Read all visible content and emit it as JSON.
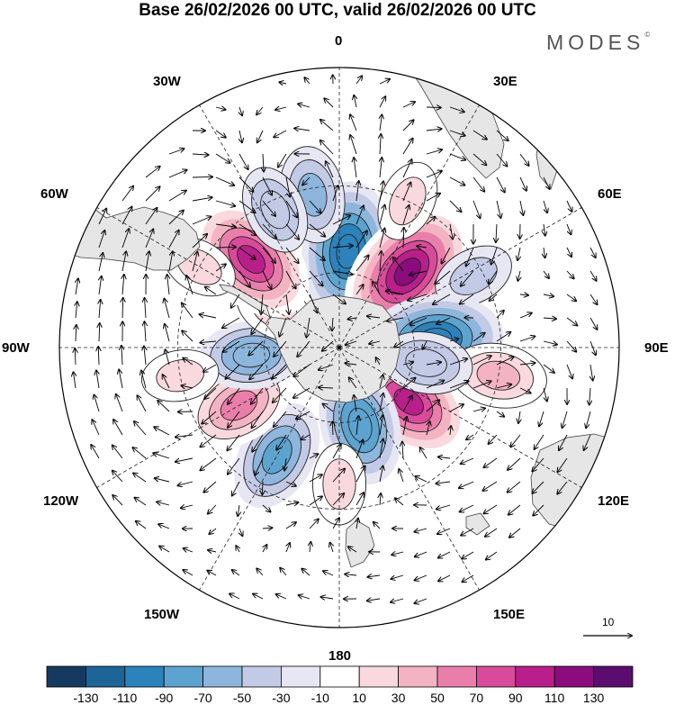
{
  "title": "Base 26/02/2026 00 UTC, valid 26/02/2026 00 UTC",
  "brand": "MODES",
  "brand_mark": "©",
  "longitude_labels": {
    "n": "0",
    "ne30": "30E",
    "ne60": "60E",
    "e90": "90E",
    "se120": "120E",
    "se150": "150E",
    "s180": "180",
    "sw150": "150W",
    "sw120": "120W",
    "w90": "90W",
    "nw60": "60W",
    "nw30": "30W"
  },
  "vector_reference": "10",
  "colorbar": {
    "labels": [
      "-130",
      "-110",
      "-90",
      "-70",
      "-50",
      "-30",
      "-10",
      "10",
      "30",
      "50",
      "70",
      "90",
      "110",
      "130"
    ],
    "colors": [
      "#163a5f",
      "#1d6497",
      "#2c82ba",
      "#5da3cf",
      "#8eb6dc",
      "#c3cae6",
      "#e7e6f3",
      "#ffffff",
      "#f9d9de",
      "#f3b3c2",
      "#ea7eab",
      "#d94b9a",
      "#b81f8a",
      "#8a0c7d",
      "#5a0d6e"
    ]
  },
  "anomaly_centers": [
    {
      "lon": 5,
      "lat": -52,
      "value": -105
    },
    {
      "lon": 42,
      "lat": -50,
      "value": 120
    },
    {
      "lon": 75,
      "lat": -58,
      "value": 15
    },
    {
      "lon": 62,
      "lat": -33,
      "value": -30
    },
    {
      "lon": 25,
      "lat": -30,
      "value": 30
    },
    {
      "lon": -10,
      "lat": -32,
      "value": -50
    },
    {
      "lon": 85,
      "lat": -52,
      "value": -100
    },
    {
      "lon": 100,
      "lat": -30,
      "value": 50
    },
    {
      "lon": 128,
      "lat": -55,
      "value": 100
    },
    {
      "lon": 100,
      "lat": -55,
      "value": -45
    },
    {
      "lon": 165,
      "lat": -58,
      "value": -80
    },
    {
      "lon": 180,
      "lat": -38,
      "value": 30
    },
    {
      "lon": -150,
      "lat": -42,
      "value": -70
    },
    {
      "lon": -120,
      "lat": -45,
      "value": 70
    },
    {
      "lon": -95,
      "lat": -55,
      "value": -60
    },
    {
      "lon": -60,
      "lat": -60,
      "value": 30
    },
    {
      "lon": -45,
      "lat": -42,
      "value": 100
    },
    {
      "lon": -25,
      "lat": -33,
      "value": -40
    },
    {
      "lon": -60,
      "lat": -30,
      "value": 25
    },
    {
      "lon": -100,
      "lat": -30,
      "value": 25
    }
  ]
}
